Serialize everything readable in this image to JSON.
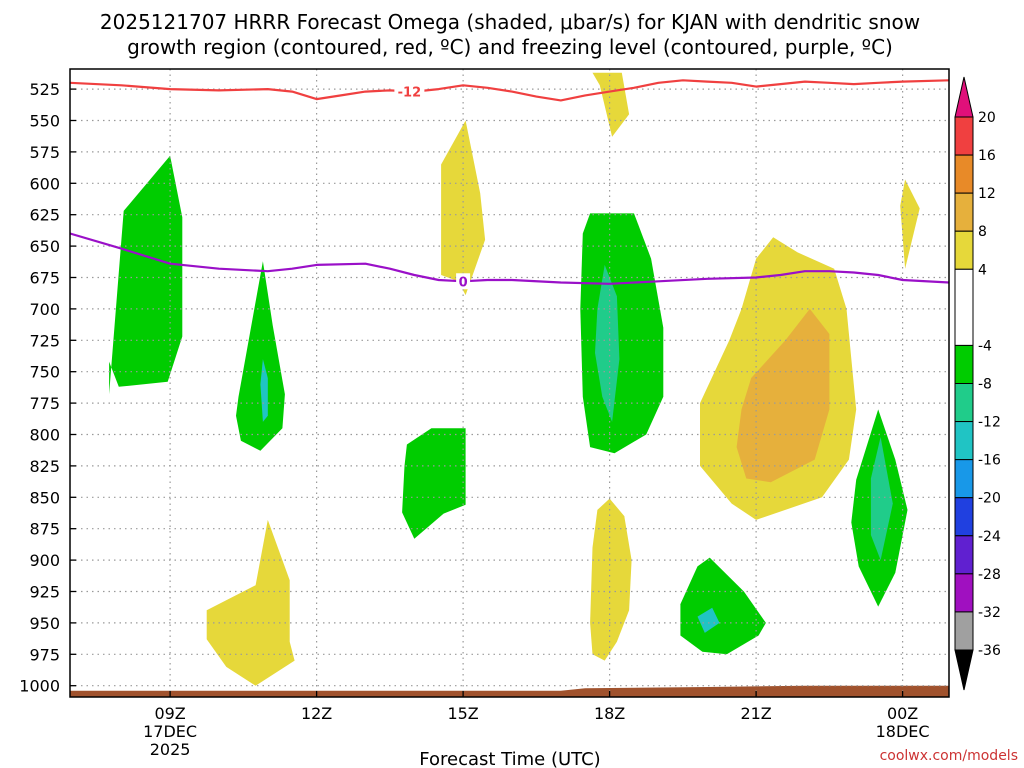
{
  "title_line1": "2025121707 HRRR Forecast Omega (shaded, μbar/s) for KJAN with dendritic snow",
  "title_line2": "growth region (contoured, red, ºC) and freezing level (contoured, purple, ºC)",
  "credit": "coolwx.com/models",
  "colors": {
    "dgz_contour": "#f04040",
    "freezing_contour": "#9a10c8",
    "ground": "#a0522d",
    "grid": "#9a9a9a"
  },
  "chart_data": {
    "type": "time-height contour",
    "xlabel": "Forecast Time (UTC)",
    "x_range_hours": [
      6.95,
      24.95
    ],
    "y_range_mb": [
      509,
      1009
    ],
    "x_ticks": [
      {
        "hour": 9,
        "lines": [
          "09Z",
          "17DEC",
          "2025"
        ]
      },
      {
        "hour": 12,
        "lines": [
          "12Z"
        ]
      },
      {
        "hour": 15,
        "lines": [
          "15Z"
        ]
      },
      {
        "hour": 18,
        "lines": [
          "18Z"
        ]
      },
      {
        "hour": 21,
        "lines": [
          "21Z"
        ]
      },
      {
        "hour": 24,
        "lines": [
          "00Z",
          "18DEC"
        ]
      }
    ],
    "y_ticks": [
      525,
      550,
      575,
      600,
      625,
      650,
      675,
      700,
      725,
      750,
      775,
      800,
      825,
      850,
      875,
      900,
      925,
      950,
      975,
      1000
    ],
    "colorbar": {
      "levels": [
        "20",
        "16",
        "12",
        "8",
        "4",
        "-4",
        "-8",
        "-12",
        "-16",
        "-20",
        "-24",
        "-28",
        "-32",
        "-36"
      ],
      "bins": [
        {
          "range": [
            16,
            20
          ],
          "color": "#f04040"
        },
        {
          "range": [
            12,
            16
          ],
          "color": "#e88a28"
        },
        {
          "range": [
            8,
            12
          ],
          "color": "#e6b03c"
        },
        {
          "range": [
            4,
            8
          ],
          "color": "#e6d83a"
        },
        {
          "range": [
            -4,
            4
          ],
          "color": "#ffffff"
        },
        {
          "range": [
            -8,
            -4
          ],
          "color": "#00cc00"
        },
        {
          "range": [
            -12,
            -8
          ],
          "color": "#20cc8a"
        },
        {
          "range": [
            -16,
            -12
          ],
          "color": "#20c4c4"
        },
        {
          "range": [
            -20,
            -16
          ],
          "color": "#1898e8"
        },
        {
          "range": [
            -24,
            -20
          ],
          "color": "#2040e0"
        },
        {
          "range": [
            -28,
            -24
          ],
          "color": "#6020d0"
        },
        {
          "range": [
            -32,
            -28
          ],
          "color": "#a010c0"
        },
        {
          "range": [
            -36,
            -32
          ],
          "color": "#a0a0a0"
        }
      ],
      "top_arrow_color": "#e0107a",
      "bottom_arrow_color": "#000000"
    },
    "omega_regions": [
      {
        "bin": -6,
        "color": "#00cc00",
        "points": [
          [
            7.75,
            768
          ],
          [
            8.05,
            622
          ],
          [
            9,
            578
          ],
          [
            9.25,
            627
          ],
          [
            9.25,
            722
          ],
          [
            8.95,
            758
          ],
          [
            7.95,
            762
          ],
          [
            7.75,
            742
          ]
        ]
      },
      {
        "bin": -6,
        "color": "#00cc00",
        "points": [
          [
            10.4,
            770
          ],
          [
            10.9,
            662
          ],
          [
            11.1,
            713
          ],
          [
            11.35,
            768
          ],
          [
            11.3,
            795
          ],
          [
            10.85,
            813
          ],
          [
            10.45,
            805
          ],
          [
            10.35,
            785
          ]
        ]
      },
      {
        "bin": -14,
        "color": "#20c4c4",
        "points": [
          [
            10.9,
            740
          ],
          [
            11.0,
            755
          ],
          [
            11.0,
            785
          ],
          [
            10.9,
            790
          ],
          [
            10.85,
            760
          ]
        ]
      },
      {
        "bin": 6,
        "color": "#e6d83a",
        "points": [
          [
            14.55,
            673
          ],
          [
            14.55,
            585
          ],
          [
            15.05,
            550
          ],
          [
            15.35,
            608
          ],
          [
            15.45,
            645
          ],
          [
            15.05,
            689
          ],
          [
            14.9,
            678
          ]
        ]
      },
      {
        "bin": -6,
        "color": "#00cc00",
        "points": [
          [
            13.8,
            825
          ],
          [
            13.85,
            808
          ],
          [
            14.35,
            795
          ],
          [
            15.05,
            795
          ],
          [
            15.05,
            856
          ],
          [
            14.6,
            863
          ],
          [
            14.0,
            883
          ],
          [
            13.75,
            862
          ]
        ]
      },
      {
        "bin": 6,
        "color": "#e6d83a",
        "points": [
          [
            9.75,
            940
          ],
          [
            10.75,
            920
          ],
          [
            11.0,
            868
          ],
          [
            11.45,
            916
          ],
          [
            11.45,
            965
          ],
          [
            11.55,
            980
          ],
          [
            10.75,
            1000
          ],
          [
            10.15,
            985
          ],
          [
            9.75,
            963
          ]
        ]
      },
      {
        "bin": 6,
        "color": "#e6d83a",
        "points": [
          [
            17.65,
            512
          ],
          [
            18.25,
            512
          ],
          [
            18.4,
            545
          ],
          [
            18.05,
            563
          ],
          [
            17.8,
            522
          ]
        ]
      },
      {
        "bin": -6,
        "color": "#00cc00",
        "points": [
          [
            17.6,
            624
          ],
          [
            18.5,
            624
          ],
          [
            18.85,
            660
          ],
          [
            19.1,
            715
          ],
          [
            19.1,
            770
          ],
          [
            18.75,
            800
          ],
          [
            18.1,
            815
          ],
          [
            17.6,
            810
          ],
          [
            17.45,
            770
          ],
          [
            17.4,
            700
          ],
          [
            17.45,
            640
          ]
        ]
      },
      {
        "bin": -10,
        "color": "#20cc8a",
        "points": [
          [
            17.75,
            700
          ],
          [
            17.9,
            665
          ],
          [
            18.15,
            690
          ],
          [
            18.2,
            740
          ],
          [
            18.05,
            790
          ],
          [
            17.85,
            770
          ],
          [
            17.7,
            735
          ]
        ]
      },
      {
        "bin": 6,
        "color": "#e6d83a",
        "points": [
          [
            17.65,
            890
          ],
          [
            17.75,
            860
          ],
          [
            18.0,
            851
          ],
          [
            18.3,
            865
          ],
          [
            18.45,
            900
          ],
          [
            18.4,
            940
          ],
          [
            18.15,
            965
          ],
          [
            17.9,
            980
          ],
          [
            17.65,
            975
          ],
          [
            17.6,
            950
          ]
        ]
      },
      {
        "bin": 6,
        "color": "#e6d83a",
        "points": [
          [
            21.0,
            660
          ],
          [
            21.35,
            643
          ],
          [
            21.85,
            655
          ],
          [
            22.6,
            668
          ],
          [
            22.85,
            700
          ],
          [
            23.05,
            780
          ],
          [
            22.9,
            820
          ],
          [
            22.35,
            850
          ],
          [
            21.0,
            868
          ],
          [
            20.5,
            855
          ],
          [
            19.85,
            825
          ],
          [
            19.85,
            775
          ],
          [
            20.45,
            725
          ],
          [
            20.7,
            700
          ]
        ]
      },
      {
        "bin": 10,
        "color": "#e6b03c",
        "points": [
          [
            20.7,
            780
          ],
          [
            20.9,
            755
          ],
          [
            21.6,
            725
          ],
          [
            22.1,
            700
          ],
          [
            22.5,
            720
          ],
          [
            22.5,
            780
          ],
          [
            22.2,
            820
          ],
          [
            21.3,
            838
          ],
          [
            20.8,
            835
          ],
          [
            20.6,
            810
          ]
        ]
      },
      {
        "bin": -6,
        "color": "#00cc00",
        "points": [
          [
            19.45,
            935
          ],
          [
            19.8,
            905
          ],
          [
            20.05,
            898
          ],
          [
            20.75,
            925
          ],
          [
            21.2,
            950
          ],
          [
            21.05,
            960
          ],
          [
            20.4,
            975
          ],
          [
            19.9,
            973
          ],
          [
            19.45,
            960
          ]
        ]
      },
      {
        "bin": -14,
        "color": "#20c4c4",
        "points": [
          [
            19.8,
            945
          ],
          [
            20.1,
            938
          ],
          [
            20.25,
            950
          ],
          [
            19.95,
            958
          ]
        ]
      },
      {
        "bin": -6,
        "color": "#00cc00",
        "points": [
          [
            23.05,
            836
          ],
          [
            23.5,
            780
          ],
          [
            23.85,
            820
          ],
          [
            24.1,
            860
          ],
          [
            23.85,
            910
          ],
          [
            23.5,
            937
          ],
          [
            23.1,
            905
          ],
          [
            22.95,
            870
          ]
        ]
      },
      {
        "bin": -10,
        "color": "#20cc8a",
        "points": [
          [
            23.35,
            835
          ],
          [
            23.55,
            802
          ],
          [
            23.8,
            855
          ],
          [
            23.55,
            900
          ],
          [
            23.35,
            880
          ]
        ]
      },
      {
        "bin": 6,
        "color": "#e6d83a",
        "points": [
          [
            23.95,
            618
          ],
          [
            24.05,
            597
          ],
          [
            24.35,
            620
          ],
          [
            24.05,
            668
          ]
        ]
      }
    ],
    "contours": [
      {
        "name": "dendritic growth region",
        "value_c": -12,
        "label": "-12",
        "label_hour": 13.9,
        "color": "#f04040",
        "points": [
          [
            6.95,
            520
          ],
          [
            8,
            522
          ],
          [
            9,
            525
          ],
          [
            10,
            526
          ],
          [
            11,
            525
          ],
          [
            11.5,
            527
          ],
          [
            12,
            533
          ],
          [
            12.5,
            530
          ],
          [
            13,
            527
          ],
          [
            13.5,
            526
          ],
          [
            14,
            527
          ],
          [
            14.5,
            525
          ],
          [
            15,
            522
          ],
          [
            15.5,
            524
          ],
          [
            16,
            527
          ],
          [
            16.5,
            531
          ],
          [
            17,
            534
          ],
          [
            17.5,
            530
          ],
          [
            18,
            527
          ],
          [
            18.5,
            524
          ],
          [
            19,
            520
          ],
          [
            19.5,
            518
          ],
          [
            20,
            519
          ],
          [
            20.5,
            520
          ],
          [
            21,
            523
          ],
          [
            21.5,
            521
          ],
          [
            22,
            519
          ],
          [
            22.5,
            520
          ],
          [
            23,
            521
          ],
          [
            23.5,
            520
          ],
          [
            24,
            519
          ],
          [
            24.95,
            518
          ]
        ]
      },
      {
        "name": "freezing level",
        "value_c": 0,
        "label": "0",
        "label_hour": 15.0,
        "color": "#9a10c8",
        "points": [
          [
            6.95,
            640
          ],
          [
            8,
            652
          ],
          [
            9,
            664
          ],
          [
            10,
            668
          ],
          [
            11,
            670
          ],
          [
            11.5,
            668
          ],
          [
            12,
            665
          ],
          [
            13,
            664
          ],
          [
            13.5,
            668
          ],
          [
            14,
            673
          ],
          [
            14.5,
            677
          ],
          [
            15,
            678
          ],
          [
            15.5,
            677
          ],
          [
            16,
            677
          ],
          [
            17,
            679
          ],
          [
            18,
            680
          ],
          [
            19,
            678
          ],
          [
            20,
            676
          ],
          [
            21,
            675
          ],
          [
            21.5,
            673
          ],
          [
            22,
            670
          ],
          [
            22.5,
            670
          ],
          [
            23,
            671
          ],
          [
            23.5,
            673
          ],
          [
            24,
            677
          ],
          [
            24.95,
            679
          ]
        ]
      }
    ],
    "ground": {
      "color": "#a0522d",
      "surface_mb": [
        [
          6.95,
          1004
        ],
        [
          17,
          1004
        ],
        [
          17.5,
          1002
        ],
        [
          20,
          1001
        ],
        [
          22,
          1000
        ],
        [
          24.95,
          1000
        ]
      ]
    }
  }
}
